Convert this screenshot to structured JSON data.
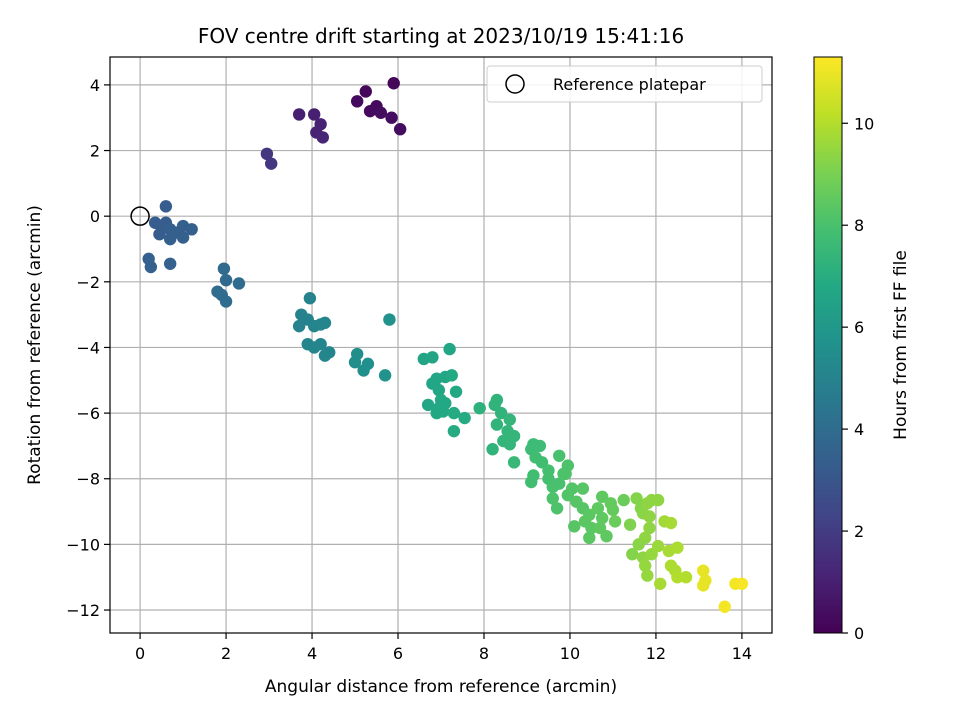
{
  "chart_data": {
    "type": "scatter",
    "title": "FOV centre drift starting at 2023/10/19 15:41:16",
    "xlabel": "Angular distance from reference (arcmin)",
    "ylabel": "Rotation from reference (arcmin)",
    "xlim": [
      -0.7,
      14.7
    ],
    "ylim": [
      -12.7,
      4.85
    ],
    "x_ticks": [
      0,
      2,
      4,
      6,
      8,
      10,
      12,
      14
    ],
    "y_ticks": [
      4,
      2,
      0,
      -2,
      -4,
      -6,
      -8,
      -10,
      -12
    ],
    "grid": true,
    "legend": {
      "position": "upper-right",
      "entries": [
        "Reference platepar"
      ]
    },
    "reference_point": {
      "x": 0,
      "y": 0
    },
    "colorbar": {
      "label": "Hours from first FF file",
      "range": [
        0,
        11.3
      ],
      "ticks": [
        0,
        2,
        4,
        6,
        8,
        10
      ],
      "colormap": "viridis"
    },
    "points": [
      [
        5.9,
        4.05,
        0.2
      ],
      [
        5.25,
        3.8,
        0.2
      ],
      [
        5.05,
        3.5,
        0.3
      ],
      [
        5.5,
        3.35,
        0.3
      ],
      [
        5.35,
        3.2,
        0.3
      ],
      [
        5.6,
        3.15,
        0.4
      ],
      [
        5.85,
        3.0,
        0.4
      ],
      [
        6.05,
        2.65,
        0.4
      ],
      [
        3.7,
        3.1,
        1.0
      ],
      [
        4.05,
        3.1,
        1.0
      ],
      [
        4.2,
        2.8,
        1.1
      ],
      [
        4.1,
        2.55,
        1.1
      ],
      [
        4.25,
        2.4,
        1.2
      ],
      [
        2.95,
        1.9,
        1.8
      ],
      [
        3.05,
        1.6,
        1.8
      ],
      [
        0.6,
        0.3,
        3.3
      ],
      [
        0.35,
        -0.2,
        3.3
      ],
      [
        0.5,
        -0.3,
        3.3
      ],
      [
        0.6,
        -0.2,
        3.3
      ],
      [
        0.45,
        -0.55,
        3.3
      ],
      [
        0.7,
        -0.4,
        3.4
      ],
      [
        0.85,
        -0.5,
        3.4
      ],
      [
        1.0,
        -0.3,
        3.4
      ],
      [
        1.0,
        -0.65,
        3.4
      ],
      [
        0.7,
        -0.7,
        3.4
      ],
      [
        1.2,
        -0.4,
        3.4
      ],
      [
        0.2,
        -1.3,
        3.5
      ],
      [
        0.25,
        -1.55,
        3.5
      ],
      [
        0.7,
        -1.45,
        3.5
      ],
      [
        1.95,
        -1.6,
        3.9
      ],
      [
        2.0,
        -1.95,
        3.9
      ],
      [
        1.8,
        -2.3,
        4.0
      ],
      [
        1.9,
        -2.4,
        4.0
      ],
      [
        2.0,
        -2.6,
        4.0
      ],
      [
        2.3,
        -2.05,
        4.0
      ],
      [
        3.95,
        -2.5,
        5.0
      ],
      [
        3.75,
        -3.0,
        5.0
      ],
      [
        3.9,
        -3.15,
        5.0
      ],
      [
        4.05,
        -3.35,
        5.1
      ],
      [
        4.2,
        -3.3,
        5.1
      ],
      [
        4.3,
        -3.25,
        5.1
      ],
      [
        3.7,
        -3.35,
        5.0
      ],
      [
        3.9,
        -3.9,
        5.1
      ],
      [
        4.05,
        -4.0,
        5.1
      ],
      [
        4.2,
        -3.9,
        5.1
      ],
      [
        4.4,
        -4.15,
        5.1
      ],
      [
        4.3,
        -4.25,
        5.1
      ],
      [
        5.05,
        -4.2,
        5.5
      ],
      [
        5.0,
        -4.45,
        5.5
      ],
      [
        5.3,
        -4.5,
        5.6
      ],
      [
        5.2,
        -4.7,
        5.6
      ],
      [
        5.7,
        -4.85,
        5.7
      ],
      [
        5.8,
        -3.15,
        5.7
      ],
      [
        6.6,
        -4.35,
        6.6
      ],
      [
        6.8,
        -4.3,
        6.6
      ],
      [
        7.2,
        -4.05,
        6.7
      ],
      [
        6.9,
        -4.95,
        6.7
      ],
      [
        6.8,
        -5.1,
        6.7
      ],
      [
        7.1,
        -4.9,
        6.7
      ],
      [
        7.25,
        -4.85,
        6.8
      ],
      [
        6.95,
        -5.3,
        6.7
      ],
      [
        7.35,
        -5.35,
        6.8
      ],
      [
        7.0,
        -5.6,
        6.8
      ],
      [
        7.1,
        -5.7,
        6.8
      ],
      [
        6.7,
        -5.75,
        6.7
      ],
      [
        6.95,
        -5.85,
        6.8
      ],
      [
        7.05,
        -5.95,
        6.8
      ],
      [
        7.3,
        -6.0,
        6.9
      ],
      [
        7.55,
        -6.15,
        6.9
      ],
      [
        7.3,
        -6.55,
        6.9
      ],
      [
        6.9,
        -6.0,
        6.8
      ],
      [
        7.9,
        -5.85,
        7.2
      ],
      [
        8.3,
        -5.6,
        7.3
      ],
      [
        8.25,
        -5.75,
        7.3
      ],
      [
        8.4,
        -6.0,
        7.3
      ],
      [
        8.6,
        -6.2,
        7.4
      ],
      [
        8.3,
        -6.35,
        7.3
      ],
      [
        8.55,
        -6.55,
        7.4
      ],
      [
        8.7,
        -6.7,
        7.4
      ],
      [
        8.45,
        -6.85,
        7.4
      ],
      [
        8.6,
        -6.95,
        7.4
      ],
      [
        8.2,
        -7.1,
        7.3
      ],
      [
        8.7,
        -7.5,
        7.5
      ],
      [
        9.1,
        -7.1,
        7.7
      ],
      [
        9.15,
        -6.95,
        7.7
      ],
      [
        9.3,
        -7.0,
        7.7
      ],
      [
        9.2,
        -7.35,
        7.8
      ],
      [
        9.35,
        -7.5,
        7.8
      ],
      [
        9.15,
        -7.9,
        7.8
      ],
      [
        9.1,
        -8.1,
        7.8
      ],
      [
        9.5,
        -7.75,
        7.9
      ],
      [
        9.5,
        -8.0,
        7.9
      ],
      [
        9.6,
        -8.25,
        8.0
      ],
      [
        9.75,
        -8.15,
        8.0
      ],
      [
        9.85,
        -7.85,
        8.1
      ],
      [
        9.95,
        -7.6,
        8.1
      ],
      [
        9.9,
        -7.85,
        8.1
      ],
      [
        9.75,
        -7.3,
        8.0
      ],
      [
        9.6,
        -8.6,
        8.1
      ],
      [
        9.7,
        -8.9,
        8.1
      ],
      [
        9.95,
        -8.5,
        8.2
      ],
      [
        10.05,
        -8.3,
        8.2
      ],
      [
        10.3,
        -8.3,
        8.3
      ],
      [
        10.15,
        -8.7,
        8.3
      ],
      [
        10.3,
        -8.9,
        8.3
      ],
      [
        10.45,
        -9.1,
        8.4
      ],
      [
        10.1,
        -9.45,
        8.3
      ],
      [
        10.35,
        -9.3,
        8.4
      ],
      [
        10.5,
        -9.5,
        8.4
      ],
      [
        10.45,
        -9.8,
        8.4
      ],
      [
        10.7,
        -9.5,
        8.5
      ],
      [
        10.85,
        -9.75,
        8.5
      ],
      [
        10.75,
        -9.2,
        8.5
      ],
      [
        10.65,
        -8.9,
        8.5
      ],
      [
        10.75,
        -8.55,
        8.5
      ],
      [
        10.95,
        -8.75,
        8.6
      ],
      [
        11.25,
        -8.65,
        8.7
      ],
      [
        11.0,
        -8.95,
        8.6
      ],
      [
        11.05,
        -9.3,
        8.7
      ],
      [
        11.4,
        -9.4,
        9.1
      ],
      [
        11.55,
        -8.6,
        9.2
      ],
      [
        11.65,
        -8.9,
        9.2
      ],
      [
        11.7,
        -9.05,
        9.3
      ],
      [
        11.9,
        -8.65,
        9.4
      ],
      [
        11.8,
        -8.75,
        9.4
      ],
      [
        12.05,
        -8.65,
        9.4
      ],
      [
        11.85,
        -9.15,
        9.4
      ],
      [
        11.85,
        -9.5,
        9.4
      ],
      [
        11.75,
        -9.8,
        9.4
      ],
      [
        11.6,
        -10.0,
        9.3
      ],
      [
        11.45,
        -10.3,
        9.2
      ],
      [
        11.7,
        -10.4,
        9.4
      ],
      [
        11.9,
        -10.3,
        9.5
      ],
      [
        11.75,
        -10.65,
        9.5
      ],
      [
        11.8,
        -10.95,
        9.5
      ],
      [
        12.05,
        -10.05,
        9.6
      ],
      [
        12.2,
        -9.3,
        9.7
      ],
      [
        12.35,
        -9.35,
        9.8
      ],
      [
        12.3,
        -10.2,
        9.8
      ],
      [
        12.5,
        -10.1,
        9.9
      ],
      [
        12.35,
        -10.65,
        9.9
      ],
      [
        12.45,
        -10.8,
        9.9
      ],
      [
        12.5,
        -11.0,
        10.0
      ],
      [
        12.7,
        -11.0,
        10.0
      ],
      [
        12.1,
        -11.2,
        9.8
      ],
      [
        13.1,
        -10.8,
        10.9
      ],
      [
        13.15,
        -11.1,
        10.9
      ],
      [
        13.1,
        -11.25,
        10.9
      ],
      [
        13.85,
        -11.2,
        11.1
      ],
      [
        14.0,
        -11.2,
        11.2
      ],
      [
        13.6,
        -11.9,
        11.1
      ]
    ]
  }
}
